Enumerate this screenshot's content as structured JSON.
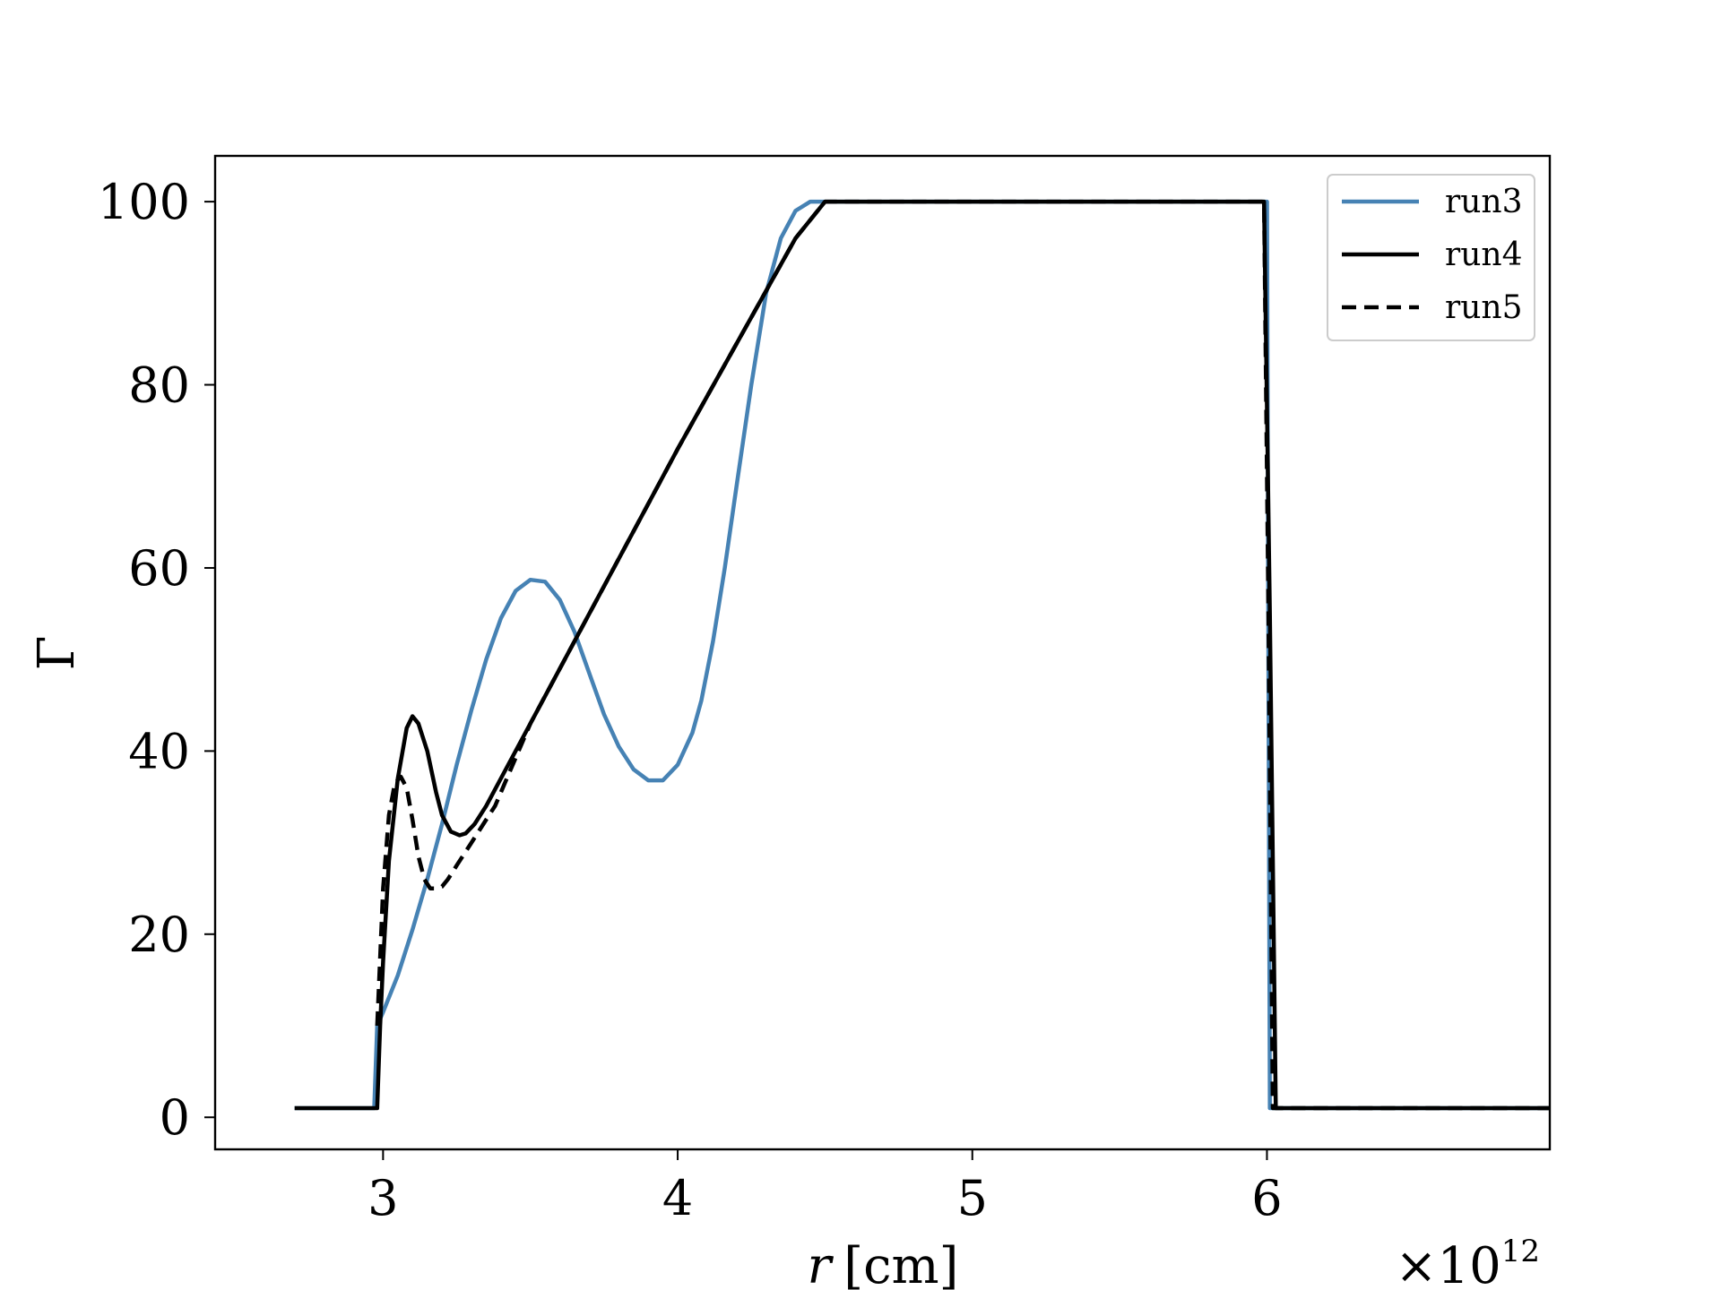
{
  "chart_data": {
    "type": "line",
    "title": "",
    "xlabel": "r [cm]",
    "xlabel_var": "r",
    "xlabel_unit": "[cm]",
    "ylabel": "Γ",
    "x_offset_label": "×10¹²",
    "x_offset_base": "×10",
    "x_offset_exp": "12",
    "xlim": [
      2.43,
      6.96
    ],
    "ylim": [
      -3.5,
      105
    ],
    "xticks": [
      3,
      4,
      5,
      6
    ],
    "xtick_labels": [
      "3",
      "4",
      "5",
      "6"
    ],
    "yticks": [
      0,
      20,
      40,
      60,
      80,
      100
    ],
    "ytick_labels": [
      "0",
      "20",
      "40",
      "60",
      "80",
      "100"
    ],
    "grid": false,
    "legend_position": "top-right",
    "legend": [
      "run3",
      "run4",
      "run5"
    ],
    "series": [
      {
        "name": "run3",
        "color": "#4682b4",
        "style": "solid",
        "x": [
          2.7,
          2.97,
          2.98,
          3.0,
          3.05,
          3.1,
          3.15,
          3.2,
          3.25,
          3.3,
          3.35,
          3.4,
          3.45,
          3.5,
          3.55,
          3.6,
          3.65,
          3.7,
          3.75,
          3.8,
          3.85,
          3.9,
          3.95,
          4.0,
          4.05,
          4.08,
          4.12,
          4.16,
          4.2,
          4.25,
          4.3,
          4.35,
          4.4,
          4.45,
          4.49,
          4.5,
          5.0,
          5.5,
          6.0,
          6.005,
          6.01,
          6.5,
          6.96
        ],
        "y": [
          1,
          1,
          10,
          11.5,
          15.5,
          20.5,
          26,
          32,
          38.5,
          44.5,
          50,
          54.5,
          57.5,
          58.7,
          58.5,
          56.5,
          53,
          48.5,
          44,
          40.5,
          38,
          36.8,
          36.8,
          38.5,
          42,
          45.5,
          52,
          60,
          69,
          80,
          90,
          96,
          99,
          100,
          100,
          100,
          100,
          100,
          100,
          50,
          1,
          1,
          1
        ]
      },
      {
        "name": "run4",
        "color": "#000000",
        "style": "solid",
        "x": [
          2.7,
          2.98,
          2.99,
          3.0,
          3.02,
          3.05,
          3.08,
          3.1,
          3.12,
          3.15,
          3.18,
          3.2,
          3.23,
          3.26,
          3.28,
          3.31,
          3.35,
          3.4,
          3.5,
          3.7,
          4.0,
          4.2,
          4.4,
          4.5,
          5.0,
          5.5,
          5.99,
          6.01,
          6.03,
          6.5,
          6.96
        ],
        "y": [
          1,
          1,
          10,
          17,
          28,
          37,
          42.5,
          43.8,
          43,
          40,
          35.5,
          33,
          31.2,
          30.8,
          31,
          32,
          34,
          37,
          43,
          55,
          73,
          84.5,
          96,
          100,
          100,
          100,
          100,
          55,
          1,
          1,
          1
        ]
      },
      {
        "name": "run5",
        "color": "#000000",
        "style": "dashed",
        "x": [
          2.98,
          3.0,
          3.02,
          3.04,
          3.06,
          3.08,
          3.1,
          3.12,
          3.14,
          3.16,
          3.18,
          3.2,
          3.22,
          3.25,
          3.3,
          3.35,
          3.38,
          3.5,
          3.7,
          4.0,
          4.2,
          4.4,
          4.5,
          5.0,
          5.5,
          5.99,
          6.005,
          6.02,
          6.5,
          6.96
        ],
        "y": [
          10,
          25,
          33,
          36.5,
          37.2,
          36,
          32.5,
          28.5,
          26,
          25,
          25,
          25.2,
          26,
          27.5,
          30,
          32.5,
          34,
          43,
          55,
          73,
          84.5,
          96,
          100,
          100,
          100,
          100,
          55,
          1,
          1,
          1
        ]
      }
    ]
  }
}
